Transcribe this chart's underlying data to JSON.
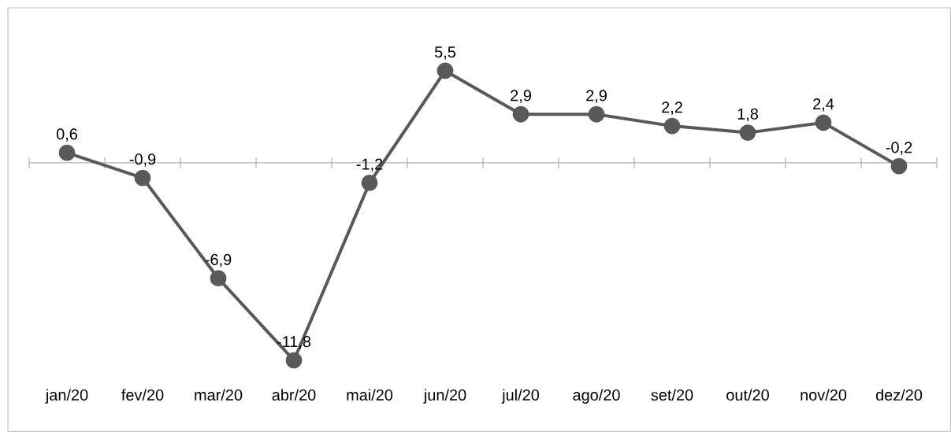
{
  "chart_data": {
    "type": "line",
    "categories": [
      "jan/20",
      "fev/20",
      "mar/20",
      "abr/20",
      "mai/20",
      "jun/20",
      "jul/20",
      "ago/20",
      "set/20",
      "out/20",
      "nov/20",
      "dez/20"
    ],
    "values": [
      0.6,
      -0.9,
      -6.9,
      -11.8,
      -1.2,
      5.5,
      2.9,
      2.9,
      2.2,
      1.8,
      2.4,
      -0.2
    ],
    "value_labels": [
      "0,6",
      "-0,9",
      "-6,9",
      "-11,8",
      "-1,2",
      "5,5",
      "2,9",
      "2,9",
      "2,2",
      "1,8",
      "2,4",
      "-0,2"
    ],
    "color": "#595959",
    "marker": "circle",
    "line_style": "solid",
    "ref_lines": [
      {
        "axis": "y",
        "value": 0,
        "color": "#b2b2b2"
      }
    ]
  }
}
